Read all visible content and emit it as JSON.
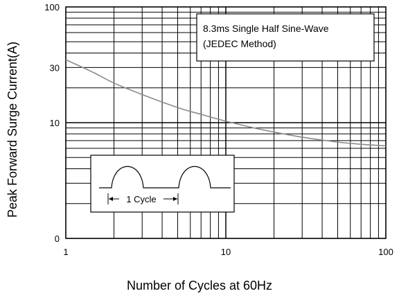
{
  "chart_data": {
    "type": "line",
    "title": "",
    "xlabel": "Number of Cycles at 60Hz",
    "ylabel": "Peak Forward Surge Current(A)",
    "x_scale": "log",
    "y_scale": "log",
    "xlim": [
      1,
      100
    ],
    "ylim": [
      1,
      100
    ],
    "x_tick_labels": [
      "1",
      "10",
      "100"
    ],
    "x_tick_values": [
      1,
      10,
      100
    ],
    "y_tick_labels": [
      "0",
      "10",
      "30",
      "100"
    ],
    "y_tick_values": [
      1,
      10,
      30,
      100
    ],
    "grid": true,
    "annotation": [
      "8.3ms Single Half Sine-Wave",
      "(JEDEC Method)"
    ],
    "inset": {
      "label": "1 Cycle"
    },
    "series": [
      {
        "x": [
          1,
          1.5,
          2,
          3,
          5,
          7,
          10,
          15,
          20,
          30,
          50,
          70,
          100
        ],
        "y": [
          35,
          27,
          22,
          17.5,
          13.5,
          11.8,
          10.3,
          9.0,
          8.3,
          7.5,
          6.8,
          6.5,
          6.3
        ]
      }
    ],
    "colors": {
      "curve": "#8a8a8a",
      "grid": "#000000"
    }
  }
}
